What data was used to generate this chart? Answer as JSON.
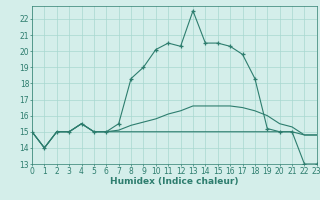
{
  "x_labels": [
    0,
    1,
    2,
    3,
    4,
    5,
    6,
    7,
    8,
    9,
    10,
    11,
    12,
    13,
    14,
    15,
    16,
    17,
    18,
    19,
    20,
    21,
    22,
    23
  ],
  "line_main": [
    15,
    14,
    15,
    15,
    15.5,
    15,
    15,
    15.5,
    18.3,
    19.0,
    20.1,
    20.5,
    20.3,
    22.5,
    20.5,
    20.5,
    20.3,
    19.8,
    18.3,
    15.2,
    15,
    15,
    13,
    13
  ],
  "line_trend": [
    15,
    14,
    15,
    15,
    15.5,
    15,
    15,
    15.1,
    15.4,
    15.6,
    15.8,
    16.1,
    16.3,
    16.6,
    16.6,
    16.6,
    16.6,
    16.5,
    16.3,
    16.0,
    15.5,
    15.3,
    14.8,
    14.8
  ],
  "line_flat": [
    15,
    14,
    15,
    15,
    15.5,
    15,
    15,
    15,
    15,
    15,
    15,
    15,
    15,
    15,
    15,
    15,
    15,
    15,
    15,
    15,
    15,
    15,
    14.8,
    14.8
  ],
  "line_color": "#2d7d6e",
  "bg_color": "#d4eeea",
  "grid_color": "#a8d8d0",
  "xlabel": "Humidex (Indice chaleur)",
  "ylim": [
    13,
    22.8
  ],
  "xlim": [
    0,
    23
  ],
  "yticks": [
    13,
    14,
    15,
    16,
    17,
    18,
    19,
    20,
    21,
    22
  ],
  "tick_fontsize": 5.5,
  "label_fontsize": 6.5
}
